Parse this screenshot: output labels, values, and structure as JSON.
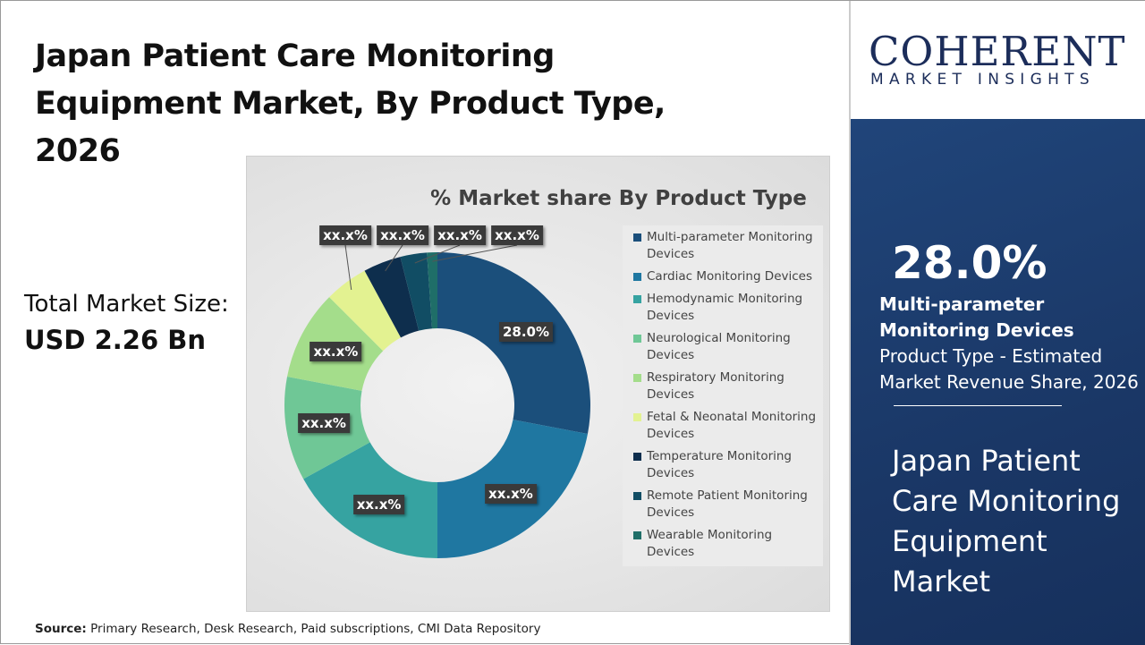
{
  "title": "Japan Patient Care Monitoring Equipment Market, By Product Type, 2026",
  "total_market": {
    "label": "Total Market Size:",
    "value": "USD 2.26 Bn"
  },
  "source": {
    "label": "Source:",
    "text": " Primary Research, Desk Research, Paid subscriptions, CMI Data Repository"
  },
  "logo": {
    "top": "COHERENT",
    "bottom": "MARKET INSIGHTS"
  },
  "highlight": {
    "value": "28.0%",
    "segment": "Multi-parameter Monitoring Devices",
    "rest": " Product Type - Estimated Market Revenue Share, 2026",
    "market": "Japan Patient Care Monitoring Equipment Market"
  },
  "colors": {
    "panel": "#1a3766",
    "text": "#111111"
  },
  "chart_data": {
    "type": "pie",
    "variant": "donut",
    "title": "% Market share By Product Type",
    "legend_position": "right",
    "categories": [
      "Multi-parameter Monitoring Devices",
      "Cardiac Monitoring Devices",
      "Hemodynamic Monitoring Devices",
      "Neurological Monitoring Devices",
      "Respiratory Monitoring Devices",
      "Fetal & Neonatal Monitoring Devices",
      "Temperature Monitoring Devices",
      "Remote Patient Monitoring Devices",
      "Wearable Monitoring Devices"
    ],
    "values": [
      28.0,
      22.0,
      17.0,
      11.0,
      9.5,
      4.6,
      4.0,
      2.8,
      1.1
    ],
    "data_labels": [
      "28.0%",
      "xx.x%",
      "xx.x%",
      "xx.x%",
      "xx.x%",
      "xx.x%",
      "xx.x%",
      "xx.x%",
      "xx.x%"
    ],
    "colors": [
      "#1b4f7b",
      "#1f77a1",
      "#36a3a1",
      "#6fc796",
      "#a4dd8b",
      "#e3f291",
      "#0e2e4d",
      "#114d64",
      "#1f6e68"
    ]
  }
}
